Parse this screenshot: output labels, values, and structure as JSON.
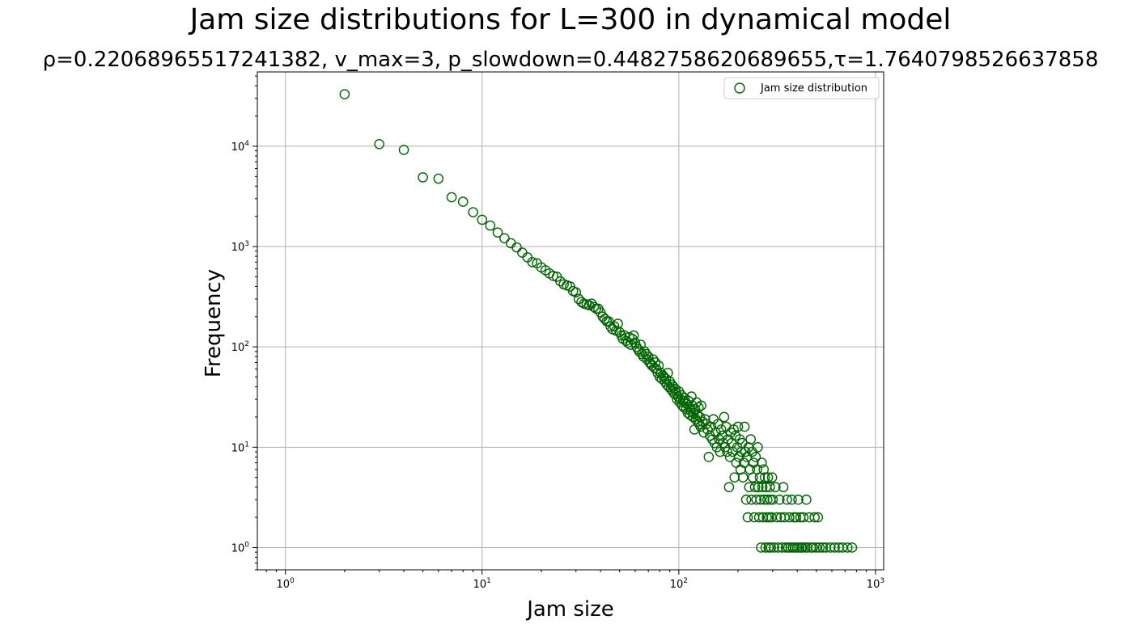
{
  "chart_data": {
    "type": "scatter",
    "title": "Jam size distributions for L=300 in dynamical model",
    "subtitle": "ρ=0.22068965517241382, v_max=3, p_slowdown=0.4482758620689655,τ=1.7640798526637858",
    "xlabel": "Jam size",
    "ylabel": "Frequency",
    "xscale": "log",
    "yscale": "log",
    "xlim": [
      0.72,
      1100
    ],
    "ylim": [
      0.6,
      55000
    ],
    "x_ticks": [
      1,
      10,
      100,
      1000
    ],
    "y_ticks": [
      1,
      10,
      100,
      1000,
      10000
    ],
    "x_tick_labels": [
      {
        "base": "10",
        "exp": "0"
      },
      {
        "base": "10",
        "exp": "1"
      },
      {
        "base": "10",
        "exp": "2"
      },
      {
        "base": "10",
        "exp": "3"
      }
    ],
    "y_tick_labels": [
      {
        "base": "10",
        "exp": "0"
      },
      {
        "base": "10",
        "exp": "1"
      },
      {
        "base": "10",
        "exp": "2"
      },
      {
        "base": "10",
        "exp": "3"
      },
      {
        "base": "10",
        "exp": "4"
      }
    ],
    "grid": true,
    "legend": {
      "position": "top-right",
      "entries": [
        "Jam size distribution"
      ]
    },
    "marker_color": "#006400",
    "series": [
      {
        "name": "Jam size distribution",
        "points": [
          [
            2,
            33000
          ],
          [
            3,
            10500
          ],
          [
            4,
            9200
          ],
          [
            5,
            4900
          ],
          [
            6,
            4750
          ],
          [
            7,
            3100
          ],
          [
            8,
            2800
          ],
          [
            9,
            2200
          ],
          [
            10,
            1850
          ],
          [
            11,
            1620
          ],
          [
            12,
            1380
          ],
          [
            13,
            1210
          ],
          [
            14,
            1080
          ],
          [
            15,
            980
          ],
          [
            16,
            870
          ],
          [
            17,
            780
          ],
          [
            18,
            700
          ],
          [
            19,
            680
          ],
          [
            20,
            620
          ],
          [
            21,
            580
          ],
          [
            22,
            540
          ],
          [
            23,
            510
          ],
          [
            24,
            500
          ],
          [
            25,
            450
          ],
          [
            26,
            420
          ],
          [
            27,
            410
          ],
          [
            28,
            400
          ],
          [
            29,
            360
          ],
          [
            30,
            350
          ],
          [
            31,
            300
          ],
          [
            32,
            280
          ],
          [
            33,
            270
          ],
          [
            34,
            265
          ],
          [
            35,
            260
          ],
          [
            36,
            270
          ],
          [
            37,
            250
          ],
          [
            38,
            240
          ],
          [
            39,
            240
          ],
          [
            40,
            220
          ],
          [
            41,
            200
          ],
          [
            42,
            190
          ],
          [
            43,
            180
          ],
          [
            44,
            180
          ],
          [
            45,
            160
          ],
          [
            46,
            150
          ],
          [
            47,
            160
          ],
          [
            48,
            145
          ],
          [
            49,
            170
          ],
          [
            50,
            140
          ],
          [
            51,
            130
          ],
          [
            52,
            120
          ],
          [
            53,
            130
          ],
          [
            54,
            115
          ],
          [
            55,
            110
          ],
          [
            56,
            125
          ],
          [
            57,
            105
          ],
          [
            58,
            120
          ],
          [
            59,
            130
          ],
          [
            60,
            110
          ],
          [
            61,
            100
          ],
          [
            62,
            95
          ],
          [
            63,
            90
          ],
          [
            64,
            105
          ],
          [
            65,
            85
          ],
          [
            66,
            80
          ],
          [
            67,
            90
          ],
          [
            68,
            85
          ],
          [
            69,
            75
          ],
          [
            70,
            80
          ],
          [
            71,
            70
          ],
          [
            72,
            68
          ],
          [
            73,
            65
          ],
          [
            74,
            75
          ],
          [
            75,
            62
          ],
          [
            76,
            70
          ],
          [
            77,
            60
          ],
          [
            78,
            55
          ],
          [
            79,
            65
          ],
          [
            80,
            50
          ],
          [
            81,
            55
          ],
          [
            82,
            48
          ],
          [
            83,
            52
          ],
          [
            84,
            50
          ],
          [
            85,
            45
          ],
          [
            86,
            48
          ],
          [
            87,
            42
          ],
          [
            88,
            55
          ],
          [
            89,
            40
          ],
          [
            90,
            45
          ],
          [
            91,
            38
          ],
          [
            92,
            42
          ],
          [
            93,
            36
          ],
          [
            94,
            40
          ],
          [
            95,
            34
          ],
          [
            96,
            38
          ],
          [
            97,
            35
          ],
          [
            98,
            30
          ],
          [
            99,
            32
          ],
          [
            100,
            36
          ],
          [
            101,
            28
          ],
          [
            102,
            30
          ],
          [
            103,
            33
          ],
          [
            104,
            26
          ],
          [
            105,
            29
          ],
          [
            106,
            25
          ],
          [
            107,
            31
          ],
          [
            108,
            28
          ],
          [
            109,
            24
          ],
          [
            110,
            27
          ],
          [
            111,
            22
          ],
          [
            112,
            29
          ],
          [
            113,
            25
          ],
          [
            114,
            21
          ],
          [
            115,
            23
          ],
          [
            116,
            32
          ],
          [
            117,
            26
          ],
          [
            118,
            20
          ],
          [
            119,
            22
          ],
          [
            120,
            15
          ],
          [
            121,
            24
          ],
          [
            122,
            19
          ],
          [
            123,
            28
          ],
          [
            124,
            21
          ],
          [
            125,
            18
          ],
          [
            126,
            25
          ],
          [
            127,
            17
          ],
          [
            128,
            20
          ],
          [
            129,
            16
          ],
          [
            130,
            26
          ],
          [
            132,
            18
          ],
          [
            134,
            14
          ],
          [
            136,
            19
          ],
          [
            138,
            17
          ],
          [
            140,
            15
          ],
          [
            142,
            8
          ],
          [
            144,
            13
          ],
          [
            146,
            16
          ],
          [
            148,
            12
          ],
          [
            150,
            19
          ],
          [
            152,
            11
          ],
          [
            154,
            14
          ],
          [
            156,
            10
          ],
          [
            158,
            17
          ],
          [
            160,
            12
          ],
          [
            162,
            9
          ],
          [
            164,
            15
          ],
          [
            166,
            13
          ],
          [
            168,
            11
          ],
          [
            170,
            20
          ],
          [
            172,
            10
          ],
          [
            174,
            16
          ],
          [
            176,
            9
          ],
          [
            178,
            12
          ],
          [
            180,
            4
          ],
          [
            182,
            8
          ],
          [
            184,
            14
          ],
          [
            186,
            11
          ],
          [
            188,
            9
          ],
          [
            190,
            15
          ],
          [
            192,
            5
          ],
          [
            194,
            13
          ],
          [
            196,
            7
          ],
          [
            198,
            10
          ],
          [
            200,
            16
          ],
          [
            202,
            8
          ],
          [
            204,
            12
          ],
          [
            206,
            6
          ],
          [
            208,
            9
          ],
          [
            210,
            11
          ],
          [
            212,
            5
          ],
          [
            214,
            7
          ],
          [
            216,
            16
          ],
          [
            218,
            9
          ],
          [
            220,
            3
          ],
          [
            222,
            8
          ],
          [
            224,
            2
          ],
          [
            226,
            10
          ],
          [
            228,
            4
          ],
          [
            230,
            6
          ],
          [
            232,
            12
          ],
          [
            234,
            3
          ],
          [
            236,
            9
          ],
          [
            238,
            5
          ],
          [
            240,
            7
          ],
          [
            242,
            2
          ],
          [
            244,
            4
          ],
          [
            246,
            8
          ],
          [
            248,
            3
          ],
          [
            250,
            6
          ],
          [
            252,
            10
          ],
          [
            254,
            4
          ],
          [
            256,
            2
          ],
          [
            258,
            5
          ],
          [
            260,
            3
          ],
          [
            262,
            1
          ],
          [
            264,
            7
          ],
          [
            266,
            4
          ],
          [
            268,
            2
          ],
          [
            270,
            6
          ],
          [
            272,
            3
          ],
          [
            274,
            5
          ],
          [
            276,
            1
          ],
          [
            278,
            4
          ],
          [
            280,
            2
          ],
          [
            282,
            3
          ],
          [
            284,
            5
          ],
          [
            286,
            1
          ],
          [
            288,
            2
          ],
          [
            290,
            4
          ],
          [
            292,
            3
          ],
          [
            294,
            1
          ],
          [
            296,
            2
          ],
          [
            298,
            5
          ],
          [
            300,
            3
          ],
          [
            305,
            1
          ],
          [
            310,
            4
          ],
          [
            315,
            2
          ],
          [
            320,
            1
          ],
          [
            325,
            3
          ],
          [
            330,
            2
          ],
          [
            335,
            1
          ],
          [
            340,
            4
          ],
          [
            345,
            2
          ],
          [
            350,
            1
          ],
          [
            355,
            3
          ],
          [
            360,
            1
          ],
          [
            365,
            2
          ],
          [
            370,
            1
          ],
          [
            375,
            3
          ],
          [
            380,
            1
          ],
          [
            385,
            2
          ],
          [
            390,
            1
          ],
          [
            395,
            2
          ],
          [
            400,
            1
          ],
          [
            405,
            3
          ],
          [
            410,
            1
          ],
          [
            415,
            2
          ],
          [
            420,
            1
          ],
          [
            425,
            1
          ],
          [
            430,
            2
          ],
          [
            440,
            1
          ],
          [
            445,
            3
          ],
          [
            450,
            1
          ],
          [
            460,
            2
          ],
          [
            470,
            1
          ],
          [
            480,
            1
          ],
          [
            490,
            2
          ],
          [
            500,
            1
          ],
          [
            510,
            2
          ],
          [
            520,
            1
          ],
          [
            540,
            1
          ],
          [
            560,
            1
          ],
          [
            590,
            1
          ],
          [
            620,
            1
          ],
          [
            650,
            1
          ],
          [
            680,
            1
          ],
          [
            720,
            1
          ],
          [
            760,
            1
          ]
        ]
      }
    ]
  }
}
